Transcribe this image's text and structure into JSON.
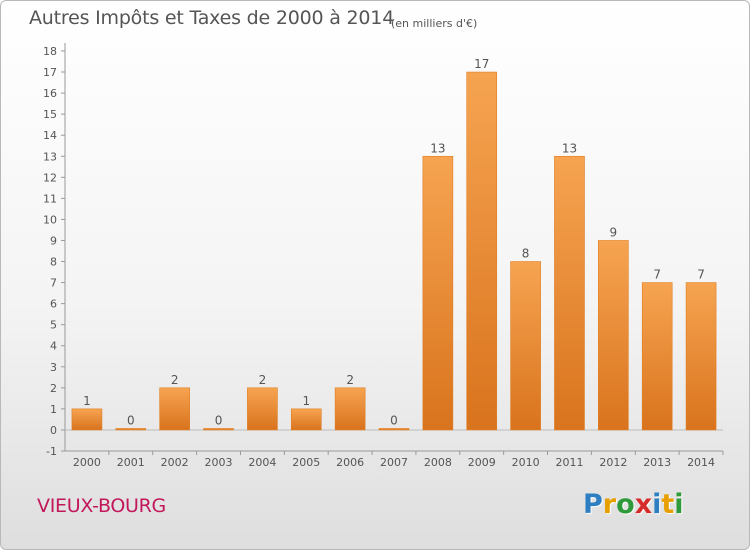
{
  "header": {
    "title": "Autres Impôts et Taxes de 2000 à 2014",
    "unit_note": "(en milliers d'€)"
  },
  "commune": "VIEUX-BOURG",
  "logo": {
    "letters": [
      "P",
      "r",
      "o",
      "x",
      "i",
      "t",
      "i"
    ],
    "colors": [
      "#2d7fc1",
      "#e8a000",
      "#2e9a3a",
      "#d62b2b",
      "#2d7fc1",
      "#e8a000",
      "#2e9a3a"
    ]
  },
  "chart_data": {
    "type": "bar",
    "title": "Autres Impôts et Taxes de 2000 à 2014",
    "subtitle": "(en milliers d'€)",
    "categories": [
      "2000",
      "2001",
      "2002",
      "2003",
      "2004",
      "2005",
      "2006",
      "2007",
      "2008",
      "2009",
      "2010",
      "2011",
      "2012",
      "2013",
      "2014"
    ],
    "values": [
      1,
      0,
      2,
      0,
      2,
      1,
      2,
      0,
      13,
      17,
      8,
      13,
      9,
      7,
      7
    ],
    "data_labels": [
      "1",
      "0",
      "2",
      "0",
      "2",
      "1",
      "2",
      "0",
      "13",
      "17",
      "8",
      "13",
      "9",
      "7",
      "7"
    ],
    "ylim": [
      -1,
      18
    ],
    "yticks": [
      "-1",
      "0",
      "1",
      "2",
      "3",
      "4",
      "5",
      "6",
      "7",
      "8",
      "9",
      "10",
      "11",
      "12",
      "13",
      "14",
      "15",
      "16",
      "17",
      "18"
    ],
    "grid": false,
    "legend": "none",
    "bar_color": "#f0922f"
  }
}
